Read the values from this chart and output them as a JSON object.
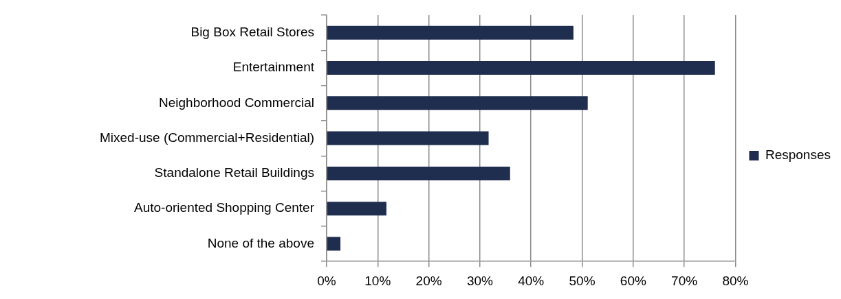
{
  "chart_data": {
    "type": "bar",
    "orientation": "horizontal",
    "categories": [
      "Big Box Retail Stores",
      "Entertainment",
      "Neighborhood Commercial",
      "Mixed-use (Commercial+Residential)",
      "Standalone Retail Buildings",
      "Auto-oriented Shopping Center",
      "None of the above"
    ],
    "series": [
      {
        "name": "Responses",
        "color": "#1f2d4e",
        "values": [
          48.3,
          76.0,
          51.1,
          31.7,
          35.9,
          11.7,
          2.7
        ]
      }
    ],
    "xlim": [
      0,
      80
    ],
    "xticks": [
      {
        "value": 0,
        "label": "0%"
      },
      {
        "value": 10,
        "label": "10%"
      },
      {
        "value": 20,
        "label": "20%"
      },
      {
        "value": 30,
        "label": "30%"
      },
      {
        "value": 40,
        "label": "40%"
      },
      {
        "value": 50,
        "label": "50%"
      },
      {
        "value": 60,
        "label": "60%"
      },
      {
        "value": 70,
        "label": "70%"
      },
      {
        "value": 80,
        "label": "80%"
      }
    ],
    "grid": "x",
    "legend": "right"
  }
}
